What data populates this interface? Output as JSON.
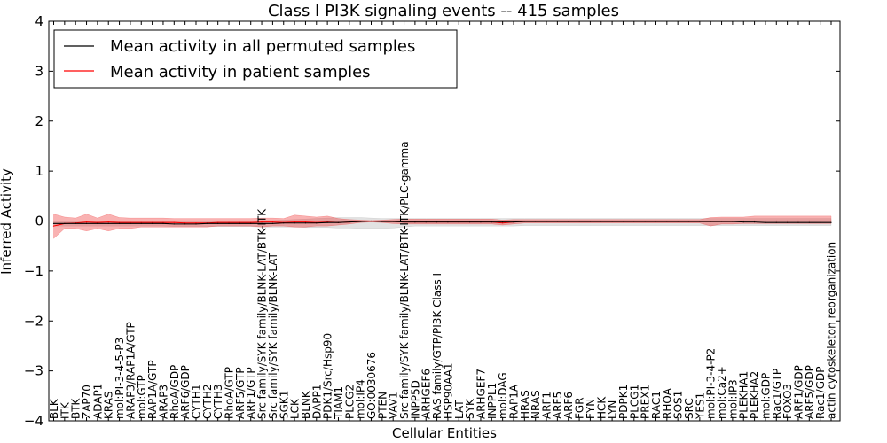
{
  "chart_data": {
    "type": "line",
    "title": "Class I PI3K signaling events -- 415 samples",
    "xlabel": "Cellular Entities",
    "ylabel": "Inferred Activity",
    "ylim": [
      -4,
      4
    ],
    "yticks": [
      -4,
      -3,
      -2,
      -1,
      0,
      1,
      2,
      3,
      4
    ],
    "ytick_labels": [
      "−4",
      "−3",
      "−2",
      "−1",
      "0",
      "1",
      "2",
      "3",
      "4"
    ],
    "legend": {
      "placement": "top-left",
      "entries": [
        {
          "label": "Mean activity in all permuted samples",
          "color": "#000000"
        },
        {
          "label": "Mean activity in patient samples",
          "color": "#ff0000"
        }
      ]
    },
    "categories": [
      "BLK",
      "ITK",
      "BTK",
      "ZAP70",
      "ADAP1",
      "KRAS",
      "mol:PI-3-4-5-P3",
      "ARAP3/RAP1A/GTP",
      "mol:GTP",
      "RAP1A/GTP",
      "ARAP3",
      "RhoA/GDP",
      "ARF6/GDP",
      "CYTH1",
      "CYTH2",
      "CYTH3",
      "RhoA/GTP",
      "ARF5/GTP",
      "ARF1/GTP",
      "Src family/SYK family/BLNK-LAT/BTK-ITK",
      "Src family/SYK family/BLNK-LAT",
      "SGK1",
      "LCK",
      "BLNK",
      "DAPP1",
      "PDK1/Src/Hsp90",
      "TIAM1",
      "PLCG2",
      "mol:IP4",
      "GO:0030676",
      "PTEN",
      "VAV1",
      "Src family/SYK family/BLNK-LAT/BTK-ITK/PLC-gamma",
      "INPP5D",
      "ARHGEF6",
      "RAS family/GTP/PI3K Class I",
      "HSP90AA1",
      "LAT",
      "SYK",
      "ARHGEF7",
      "INPPL1",
      "mol:DAG",
      "RAP1A",
      "HRAS",
      "NRAS",
      "ARF1",
      "ARF5",
      "ARF6",
      "FGR",
      "FYN",
      "HCK",
      "LYN",
      "PDPK1",
      "PLCG1",
      "PREX1",
      "RAC1",
      "RHOA",
      "SOS1",
      "SRC",
      "YES1",
      "mol:PI-3-4-P2",
      "mol:Ca2+",
      "mol:IP3",
      "PLEKHA1",
      "PLEKHA2",
      "mol:GDP",
      "Rac1/GTP",
      "FOXO3",
      "ARF1/GDP",
      "ARF5/GDP",
      "Rac1/GDP",
      "actin cytoskeleton reorganization"
    ],
    "series": [
      {
        "name": "Mean activity in all permuted samples",
        "color": "#000000",
        "values": [
          -0.05,
          -0.05,
          -0.05,
          -0.05,
          -0.05,
          -0.05,
          -0.05,
          -0.05,
          -0.05,
          -0.05,
          -0.05,
          -0.06,
          -0.06,
          -0.06,
          -0.05,
          -0.05,
          -0.05,
          -0.05,
          -0.05,
          -0.05,
          -0.05,
          -0.04,
          -0.04,
          -0.04,
          -0.04,
          -0.03,
          -0.03,
          -0.02,
          -0.01,
          0.0,
          -0.01,
          -0.01,
          -0.02,
          -0.02,
          -0.02,
          -0.02,
          -0.02,
          -0.02,
          -0.02,
          -0.02,
          -0.02,
          -0.02,
          -0.02,
          -0.01,
          -0.01,
          -0.01,
          -0.01,
          -0.01,
          -0.01,
          -0.01,
          -0.01,
          -0.01,
          -0.01,
          -0.01,
          -0.01,
          -0.01,
          -0.01,
          -0.01,
          -0.01,
          -0.01,
          -0.01,
          -0.01,
          -0.01,
          -0.02,
          -0.02,
          -0.03,
          -0.03,
          -0.03,
          -0.03,
          -0.03,
          -0.03,
          -0.03
        ],
        "band_lower": [
          -0.1,
          -0.1,
          -0.1,
          -0.1,
          -0.1,
          -0.1,
          -0.1,
          -0.1,
          -0.1,
          -0.1,
          -0.1,
          -0.11,
          -0.11,
          -0.11,
          -0.11,
          -0.11,
          -0.11,
          -0.11,
          -0.11,
          -0.12,
          -0.12,
          -0.12,
          -0.12,
          -0.13,
          -0.13,
          -0.13,
          -0.14,
          -0.14,
          -0.15,
          -0.15,
          -0.15,
          -0.14,
          -0.12,
          -0.1,
          -0.1,
          -0.1,
          -0.1,
          -0.1,
          -0.1,
          -0.1,
          -0.1,
          -0.1,
          -0.1,
          -0.09,
          -0.09,
          -0.09,
          -0.09,
          -0.09,
          -0.09,
          -0.09,
          -0.09,
          -0.09,
          -0.09,
          -0.09,
          -0.09,
          -0.09,
          -0.09,
          -0.09,
          -0.09,
          -0.09,
          -0.09,
          -0.09,
          -0.09,
          -0.09,
          -0.09,
          -0.09,
          -0.09,
          -0.09,
          -0.09,
          -0.09,
          -0.09,
          -0.09
        ],
        "band_upper": [
          0.0,
          0.0,
          0.0,
          0.0,
          0.0,
          0.0,
          0.0,
          0.0,
          0.0,
          0.0,
          0.0,
          0.0,
          0.0,
          0.0,
          0.0,
          0.0,
          0.0,
          0.0,
          0.0,
          0.01,
          0.01,
          0.02,
          0.03,
          0.04,
          0.05,
          0.06,
          0.07,
          0.07,
          0.07,
          0.06,
          0.05,
          0.05,
          0.05,
          0.05,
          0.05,
          0.05,
          0.05,
          0.05,
          0.05,
          0.05,
          0.05,
          0.05,
          0.05,
          0.05,
          0.05,
          0.05,
          0.05,
          0.05,
          0.05,
          0.05,
          0.05,
          0.05,
          0.05,
          0.05,
          0.05,
          0.05,
          0.05,
          0.05,
          0.05,
          0.05,
          0.05,
          0.05,
          0.05,
          0.05,
          0.05,
          0.05,
          0.05,
          0.05,
          0.05,
          0.05,
          0.05,
          0.05
        ]
      },
      {
        "name": "Mean activity in patient samples",
        "color": "#ff0000",
        "values": [
          -0.1,
          -0.05,
          -0.04,
          -0.02,
          -0.03,
          -0.02,
          -0.03,
          -0.03,
          -0.03,
          -0.03,
          -0.03,
          -0.03,
          -0.04,
          -0.04,
          -0.04,
          -0.03,
          -0.03,
          -0.03,
          -0.03,
          -0.02,
          -0.02,
          -0.03,
          -0.02,
          -0.02,
          -0.03,
          -0.02,
          -0.03,
          -0.02,
          -0.01,
          0.0,
          -0.01,
          -0.01,
          -0.02,
          -0.02,
          -0.02,
          -0.02,
          -0.02,
          -0.02,
          -0.02,
          -0.02,
          -0.02,
          -0.04,
          -0.02,
          -0.01,
          -0.01,
          -0.01,
          -0.01,
          -0.01,
          -0.01,
          -0.01,
          -0.01,
          -0.01,
          -0.01,
          -0.01,
          -0.01,
          -0.01,
          -0.01,
          -0.01,
          -0.01,
          -0.01,
          -0.01,
          -0.01,
          -0.01,
          0.0,
          0.0,
          0.0,
          0.0,
          0.0,
          0.0,
          0.0,
          0.0,
          0.0
        ],
        "band_lower": [
          -0.35,
          -0.15,
          -0.15,
          -0.2,
          -0.15,
          -0.2,
          -0.15,
          -0.15,
          -0.12,
          -0.12,
          -0.12,
          -0.12,
          -0.12,
          -0.12,
          -0.12,
          -0.1,
          -0.1,
          -0.1,
          -0.1,
          -0.12,
          -0.1,
          -0.1,
          -0.12,
          -0.12,
          -0.1,
          -0.1,
          -0.08,
          -0.06,
          -0.03,
          -0.02,
          -0.03,
          -0.05,
          -0.06,
          -0.06,
          -0.06,
          -0.06,
          -0.06,
          -0.06,
          -0.06,
          -0.06,
          -0.06,
          -0.08,
          -0.06,
          -0.04,
          -0.04,
          -0.04,
          -0.04,
          -0.04,
          -0.04,
          -0.04,
          -0.04,
          -0.04,
          -0.04,
          -0.04,
          -0.04,
          -0.04,
          -0.04,
          -0.04,
          -0.04,
          -0.04,
          -0.1,
          -0.06,
          -0.06,
          -0.05,
          -0.05,
          -0.05,
          -0.05,
          -0.05,
          -0.05,
          -0.05,
          -0.05,
          -0.05
        ],
        "band_upper": [
          0.14,
          0.08,
          0.06,
          0.14,
          0.06,
          0.14,
          0.07,
          0.06,
          0.06,
          0.06,
          0.06,
          0.05,
          0.05,
          0.05,
          0.05,
          0.05,
          0.05,
          0.05,
          0.05,
          0.06,
          0.06,
          0.05,
          0.12,
          0.1,
          0.08,
          0.1,
          0.05,
          0.03,
          0.02,
          0.01,
          0.02,
          0.03,
          0.04,
          0.04,
          0.04,
          0.04,
          0.04,
          0.04,
          0.04,
          0.04,
          0.04,
          0.02,
          0.03,
          0.03,
          0.03,
          0.03,
          0.03,
          0.03,
          0.03,
          0.03,
          0.03,
          0.03,
          0.03,
          0.03,
          0.03,
          0.03,
          0.03,
          0.03,
          0.03,
          0.03,
          0.07,
          0.08,
          0.08,
          0.08,
          0.1,
          0.1,
          0.1,
          0.1,
          0.1,
          0.1,
          0.1,
          0.1
        ]
      }
    ]
  }
}
